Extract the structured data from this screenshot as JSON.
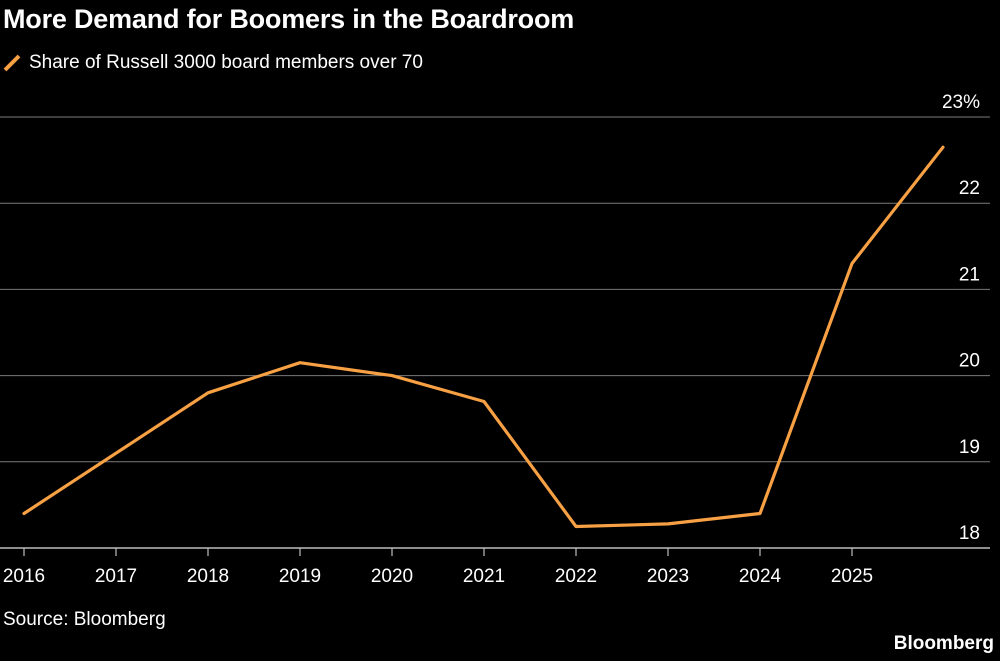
{
  "header": {
    "title": "More Demand for Boomers in the Boardroom"
  },
  "legend": {
    "label": "Share of Russell 3000 board members over 70"
  },
  "footer": {
    "source": "Source: Bloomberg",
    "brand": "Bloomberg"
  },
  "colors": {
    "background": "#000000",
    "series": "#f7a044",
    "grid": "#7a7a7a",
    "text": "#ffffff"
  },
  "chart_data": {
    "type": "line",
    "title": "More Demand for Boomers in the Boardroom",
    "xlabel": "",
    "ylabel": "",
    "x_ticks": [
      "2016",
      "2017",
      "2018",
      "2019",
      "2020",
      "2021",
      "2022",
      "2023",
      "2024",
      "2025"
    ],
    "y_ticks": [
      {
        "value": 18,
        "label": "18"
      },
      {
        "value": 19,
        "label": "19"
      },
      {
        "value": 20,
        "label": "20"
      },
      {
        "value": 21,
        "label": "21"
      },
      {
        "value": 22,
        "label": "22"
      },
      {
        "value": 23,
        "label": "23%"
      }
    ],
    "xlim": [
      2016,
      2025.9
    ],
    "ylim": [
      18,
      23
    ],
    "grid": true,
    "legend_position": "top-left",
    "y_axis_position": "right",
    "series": [
      {
        "name": "Share of Russell 3000 board members over 70",
        "x": [
          2016,
          2017,
          2018,
          2019,
          2020,
          2021,
          2022,
          2023,
          2024,
          2025,
          2026
        ],
        "values": [
          18.4,
          19.1,
          19.8,
          20.15,
          20.0,
          19.7,
          18.25,
          18.28,
          18.4,
          21.3,
          22.65
        ]
      }
    ]
  }
}
